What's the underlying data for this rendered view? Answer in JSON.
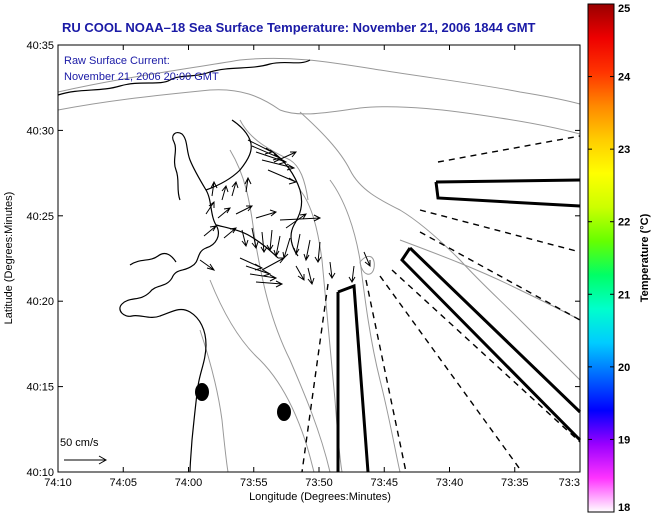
{
  "title": "RU COOL  NOAA–18  Sea Surface Temperature:  November 21, 2006 1844 GMT",
  "current_note": {
    "line1": "Raw Surface Current:",
    "line2": "November 21, 2006 20:00 GMT"
  },
  "scale_label": "50 cm/s",
  "x_axis": {
    "label": "Longitude (Degrees:Minutes)",
    "ticks": [
      "74:10",
      "74:05",
      "74:00",
      "73:55",
      "73:50",
      "73:45",
      "73:40",
      "73:35",
      "73:3"
    ]
  },
  "y_axis": {
    "label": "Latitude (Degrees:Minutes)",
    "ticks": [
      "40:10",
      "40:15",
      "40:20",
      "40:25",
      "40:30",
      "40:35"
    ]
  },
  "colorbar": {
    "label": "Temperature (°C)",
    "ticks": [
      "18",
      "19",
      "20",
      "21",
      "22",
      "23",
      "24",
      "25"
    ],
    "colors": [
      "#ffffff",
      "#ff33ff",
      "#9900ff",
      "#0000ff",
      "#0066ff",
      "#00ccff",
      "#00ffcc",
      "#00ff66",
      "#66ff00",
      "#ccff00",
      "#ffff00",
      "#ffcc00",
      "#ff8800",
      "#ff3300",
      "#ee0000",
      "#990000"
    ]
  },
  "colors": {
    "title": "#1a1aa6",
    "contour": "#999999",
    "coast": "#000000"
  },
  "markers": [
    "buoy",
    "buoy"
  ],
  "current_vectors_visible": true
}
